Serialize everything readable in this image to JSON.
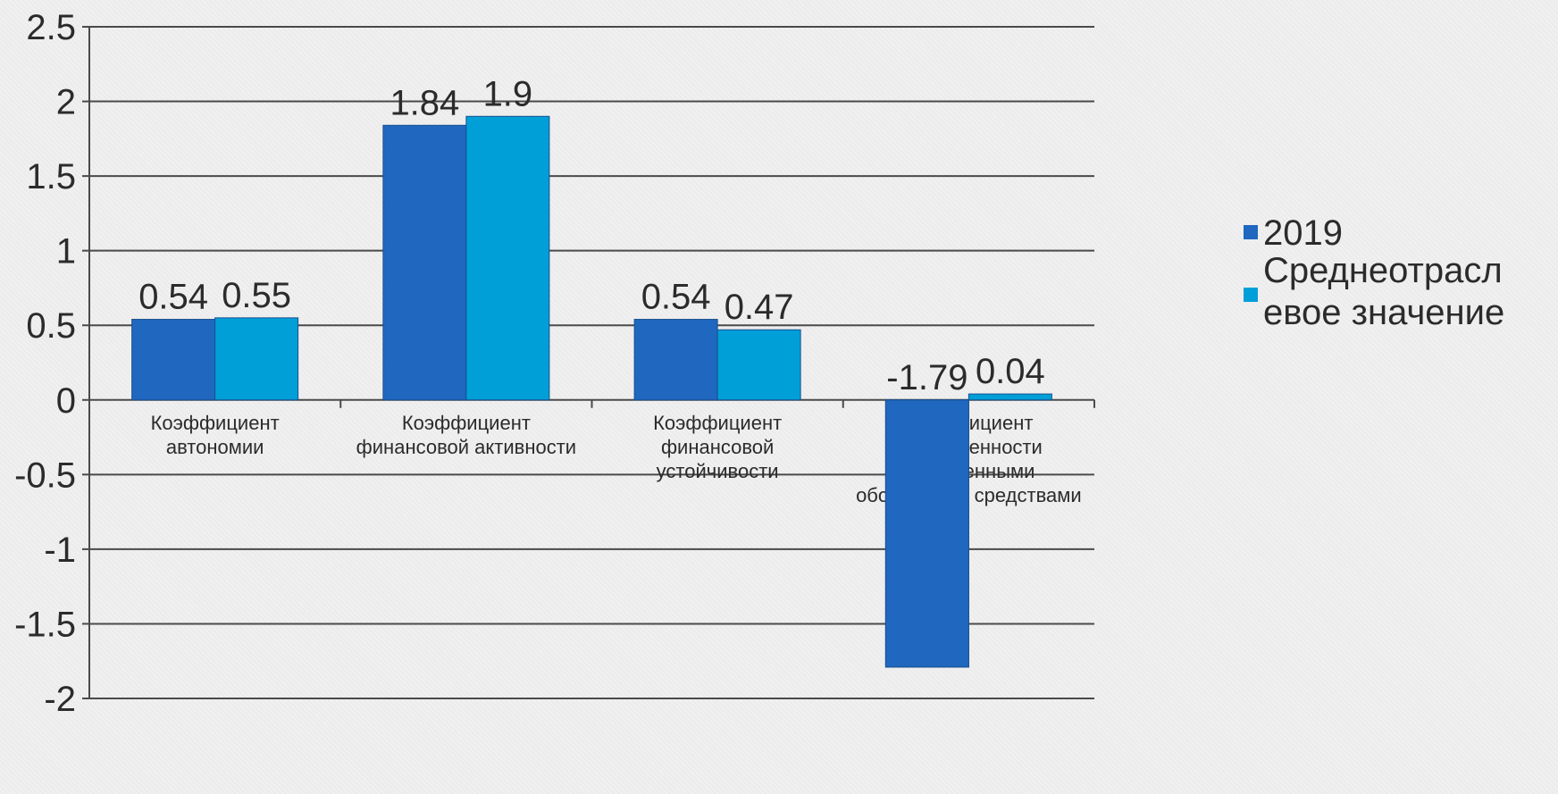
{
  "chart_data": {
    "type": "bar",
    "categories": [
      [
        "Коэффициент",
        "автономии"
      ],
      [
        "Коэффициент",
        "финансовой активности"
      ],
      [
        "Коэффициент",
        "финансовой",
        "устойчивости"
      ],
      [
        "Коэффициент",
        "обеспеченности",
        "собственными",
        "оборотными средствами"
      ]
    ],
    "series": [
      {
        "name": "2019",
        "values": [
          0.54,
          1.84,
          0.54,
          -1.79
        ],
        "labels": [
          "0.54",
          "1.84",
          "0.54",
          "-1.79"
        ],
        "color": "#1f67bf"
      },
      {
        "name": "Среднеотраслевое значение",
        "values": [
          0.55,
          1.9,
          0.47,
          0.04
        ],
        "labels": [
          "0.55",
          "1.9",
          "0.47",
          "0.04"
        ],
        "color": "#009fd8"
      }
    ],
    "legend_lines": [
      [
        "2019"
      ],
      [
        "Среднеотрасл",
        "евое значение"
      ]
    ],
    "yticks": [
      2.5,
      2,
      1.5,
      1,
      0.5,
      0,
      -0.5,
      -1,
      -1.5,
      -2
    ],
    "ytick_labels": [
      "2.5",
      "2",
      "1.5",
      "1",
      "0.5",
      "0",
      "-0.5",
      "-1",
      "-1.5",
      "-2"
    ],
    "ylim": [
      -2,
      2.5
    ],
    "grid": true,
    "legend": "right",
    "title": "",
    "xlabel": "",
    "ylabel": ""
  }
}
